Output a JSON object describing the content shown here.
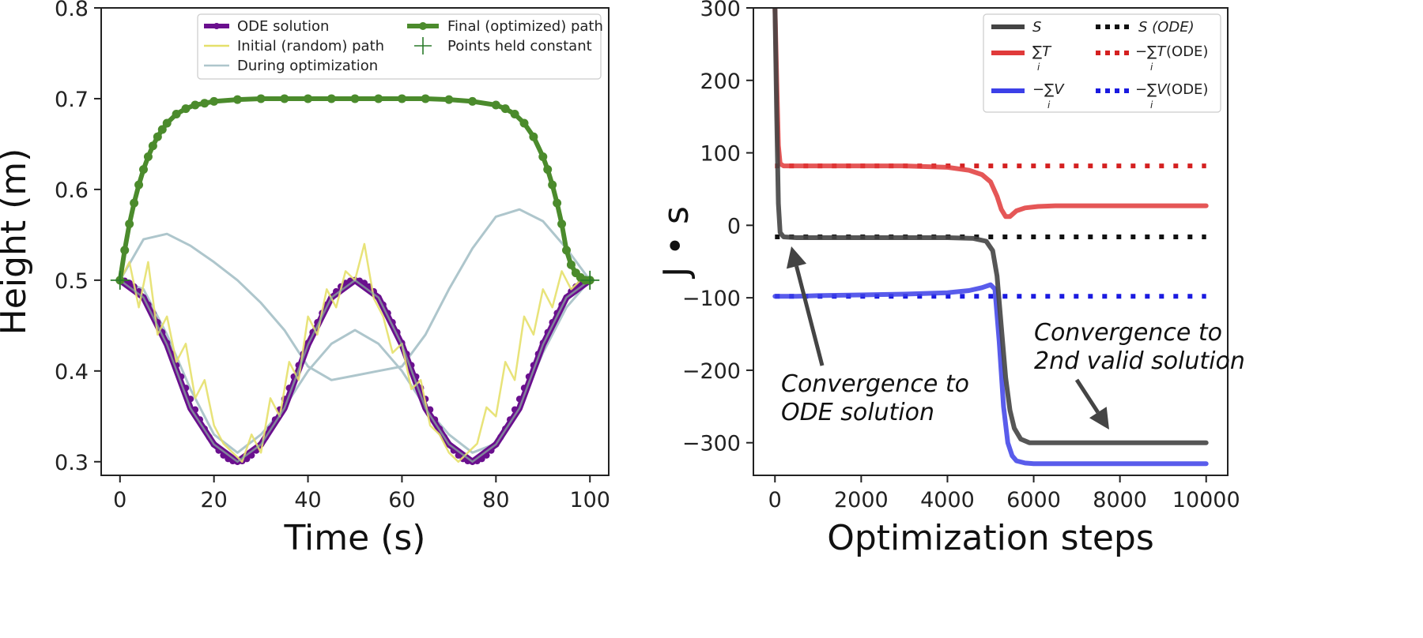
{
  "chart_data": [
    {
      "type": "line",
      "xlabel": "Time (s)",
      "ylabel": "Height (m)",
      "xlim": [
        -4,
        104
      ],
      "ylim": [
        0.285,
        0.8
      ],
      "xticks": [
        0,
        20,
        40,
        60,
        80,
        100
      ],
      "yticks": [
        0.3,
        0.4,
        0.5,
        0.6,
        0.7,
        0.8
      ],
      "ytick_labels": [
        "0.3",
        "0.4",
        "0.5",
        "0.6",
        "0.7",
        "0.8"
      ],
      "legend_position": "top",
      "legend": {
        "ode": "ODE solution",
        "initial": "Initial (random) path",
        "during": "During optimization",
        "final": "Final (optimized) path",
        "held": "Points held constant"
      },
      "series": [
        {
          "name": "ODE solution",
          "color": "#6a0f8e",
          "x": [
            0,
            5,
            10,
            15,
            20,
            25,
            30,
            35,
            40,
            45,
            50,
            55,
            60,
            65,
            70,
            75,
            80,
            85,
            90,
            95,
            100
          ],
          "y": [
            0.5,
            0.481,
            0.429,
            0.359,
            0.319,
            0.3,
            0.319,
            0.359,
            0.429,
            0.481,
            0.5,
            0.481,
            0.429,
            0.359,
            0.319,
            0.3,
            0.319,
            0.359,
            0.429,
            0.481,
            0.5
          ]
        },
        {
          "name": "Initial (random) path",
          "color": "#e5e06a",
          "x": [
            0,
            2,
            4,
            6,
            8,
            10,
            12,
            14,
            16,
            18,
            20,
            22,
            24,
            26,
            28,
            30,
            32,
            34,
            36,
            38,
            40,
            42,
            44,
            46,
            48,
            50,
            52,
            54,
            56,
            58,
            60,
            62,
            64,
            66,
            68,
            70,
            72,
            74,
            76,
            78,
            80,
            82,
            84,
            86,
            88,
            90,
            92,
            94,
            96,
            98,
            100
          ],
          "y": [
            0.5,
            0.52,
            0.47,
            0.52,
            0.44,
            0.46,
            0.41,
            0.43,
            0.37,
            0.39,
            0.34,
            0.32,
            0.31,
            0.3,
            0.33,
            0.31,
            0.37,
            0.35,
            0.41,
            0.39,
            0.46,
            0.44,
            0.49,
            0.47,
            0.51,
            0.5,
            0.54,
            0.48,
            0.46,
            0.42,
            0.43,
            0.38,
            0.39,
            0.34,
            0.33,
            0.31,
            0.3,
            0.31,
            0.32,
            0.36,
            0.35,
            0.41,
            0.39,
            0.46,
            0.44,
            0.49,
            0.47,
            0.51,
            0.49,
            0.5,
            0.5
          ]
        },
        {
          "name": "During optimization",
          "color": "#aec6cc",
          "paths": [
            {
              "x": [
                0,
                5,
                10,
                15,
                20,
                25,
                30,
                35,
                40,
                45,
                50,
                55,
                60,
                65,
                70,
                75,
                80,
                85,
                90,
                95,
                100
              ],
              "y": [
                0.5,
                0.545,
                0.551,
                0.538,
                0.52,
                0.5,
                0.475,
                0.445,
                0.405,
                0.39,
                0.395,
                0.4,
                0.405,
                0.44,
                0.49,
                0.535,
                0.57,
                0.578,
                0.565,
                0.535,
                0.5
              ]
            },
            {
              "x": [
                0,
                5,
                10,
                15,
                20,
                25,
                30,
                35,
                40,
                45,
                50,
                55,
                60,
                65,
                70,
                75,
                80,
                85,
                90,
                95,
                100
              ],
              "y": [
                0.5,
                0.49,
                0.44,
                0.38,
                0.33,
                0.31,
                0.33,
                0.36,
                0.4,
                0.43,
                0.445,
                0.43,
                0.4,
                0.36,
                0.33,
                0.31,
                0.32,
                0.36,
                0.42,
                0.47,
                0.5
              ]
            }
          ]
        },
        {
          "name": "Final (optimized) path",
          "color": "#4b8b2c",
          "x": [
            0,
            1,
            2,
            3,
            4,
            5,
            6,
            7,
            8,
            9,
            10,
            12,
            14,
            16,
            18,
            20,
            25,
            30,
            35,
            40,
            45,
            50,
            55,
            60,
            65,
            70,
            75,
            80,
            82,
            84,
            86,
            88,
            90,
            91,
            92,
            93,
            94,
            95,
            96,
            97,
            98,
            99,
            100
          ],
          "y": [
            0.5,
            0.533,
            0.562,
            0.585,
            0.605,
            0.622,
            0.636,
            0.648,
            0.658,
            0.666,
            0.673,
            0.683,
            0.689,
            0.693,
            0.695,
            0.697,
            0.699,
            0.7,
            0.7,
            0.7,
            0.7,
            0.7,
            0.7,
            0.7,
            0.7,
            0.699,
            0.697,
            0.693,
            0.689,
            0.683,
            0.673,
            0.658,
            0.636,
            0.622,
            0.605,
            0.585,
            0.562,
            0.533,
            0.517,
            0.508,
            0.503,
            0.5,
            0.5
          ]
        }
      ],
      "held_points": [
        {
          "x": 0,
          "y": 0.5
        },
        {
          "x": 100,
          "y": 0.5
        }
      ]
    },
    {
      "type": "line",
      "xlabel": "Optimization steps",
      "ylabel": "J • s",
      "xlim": [
        -500,
        10500
      ],
      "ylim": [
        -345,
        300
      ],
      "xticks": [
        0,
        2000,
        4000,
        6000,
        8000,
        10000
      ],
      "yticks": [
        -300,
        -200,
        -100,
        0,
        100,
        200,
        300
      ],
      "ytick_labels": [
        "−300",
        "−200",
        "−100",
        "0",
        "100",
        "200",
        "300"
      ],
      "legend_position": "top-right",
      "legend": {
        "s": "S",
        "t": "∑T",
        "v": "−∑V",
        "s_ode": "S (ODE)",
        "t_ode": "−∑T",
        "v_ode": "−∑V",
        "i": "i",
        "ti": "i",
        "ode": "(ODE)"
      },
      "series": [
        {
          "name": "S",
          "color": "#444444",
          "x": [
            0,
            40,
            80,
            120,
            200,
            500,
            1000,
            2000,
            3000,
            4000,
            4600,
            4900,
            5050,
            5150,
            5250,
            5350,
            5450,
            5550,
            5700,
            5900,
            6500,
            8000,
            10000
          ],
          "y": [
            300,
            150,
            30,
            -10,
            -16,
            -17,
            -17,
            -17,
            -17,
            -17,
            -18,
            -22,
            -35,
            -70,
            -140,
            -210,
            -255,
            -280,
            -295,
            -300,
            -300,
            -300,
            -300
          ]
        },
        {
          "name": "∑T",
          "color": "#e03a3a",
          "x": [
            0,
            40,
            80,
            120,
            200,
            500,
            1000,
            2000,
            3000,
            4000,
            4500,
            4800,
            5000,
            5150,
            5250,
            5350,
            5450,
            5600,
            5800,
            6100,
            6500,
            8000,
            10000
          ],
          "y": [
            300,
            200,
            110,
            85,
            82,
            82,
            82,
            82,
            82,
            80,
            76,
            70,
            60,
            40,
            22,
            12,
            12,
            20,
            24,
            26,
            27,
            27,
            27
          ]
        },
        {
          "name": "−∑V",
          "color": "#3c40e8",
          "x": [
            0,
            500,
            1000,
            2000,
            3000,
            4000,
            4500,
            4800,
            5000,
            5100,
            5200,
            5300,
            5400,
            5500,
            5600,
            5800,
            6000,
            7000,
            10000
          ],
          "y": [
            -98,
            -98,
            -97,
            -96,
            -95,
            -93,
            -90,
            -86,
            -82,
            -88,
            -160,
            -250,
            -300,
            -318,
            -325,
            -328,
            -329,
            -329,
            -329
          ]
        },
        {
          "name": "S (ODE)",
          "color": "#111111",
          "x": [
            0,
            10000
          ],
          "y": [
            -16,
            -16
          ]
        },
        {
          "name": "−∑T (ODE)",
          "color": "#d42020",
          "x": [
            0,
            10000
          ],
          "y": [
            82,
            82
          ]
        },
        {
          "name": "−∑V (ODE)",
          "color": "#1a1ae0",
          "x": [
            0,
            10000
          ],
          "y": [
            -98,
            -98
          ]
        }
      ],
      "annotations": {
        "a1_line1": "Convergence to",
        "a1_line2": "ODE solution",
        "a2_line1": "Convergence to",
        "a2_line2": "2nd valid solution"
      }
    }
  ]
}
